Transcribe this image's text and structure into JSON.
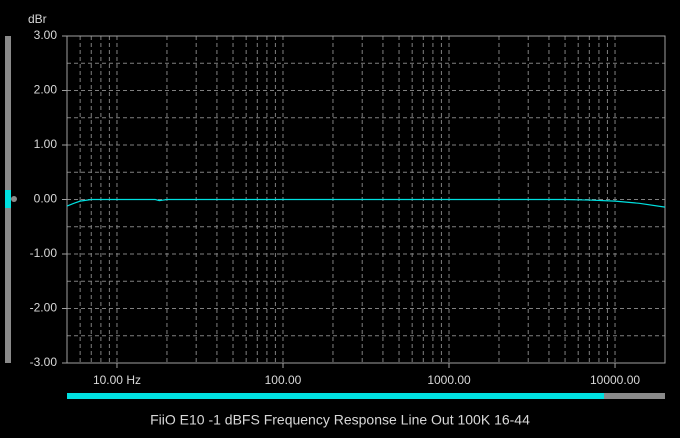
{
  "chart_data": {
    "type": "line",
    "title": "FiiO E10 -1 dBFS Frequency Response Line Out 100K 16-44",
    "y_label": "dBr",
    "x_log": true,
    "xlim": [
      5,
      20000
    ],
    "ylim": [
      -3,
      3
    ],
    "xticks": [
      {
        "value": 10,
        "label": "10.00 Hz"
      },
      {
        "value": 100,
        "label": "100.00"
      },
      {
        "value": 1000,
        "label": "1000.00"
      },
      {
        "value": 10000,
        "label": "10000.00"
      }
    ],
    "yticks": [
      {
        "value": 3,
        "label": "3.00"
      },
      {
        "value": 2,
        "label": "2.00"
      },
      {
        "value": 1,
        "label": "1.00"
      },
      {
        "value": 0,
        "label": "0.00"
      },
      {
        "value": -1,
        "label": "-1.00"
      },
      {
        "value": -2,
        "label": "-2.00"
      },
      {
        "value": -3,
        "label": "-3.00"
      }
    ],
    "x_minor_grid": [
      6,
      7,
      8,
      9,
      20,
      30,
      40,
      50,
      60,
      70,
      80,
      90,
      200,
      300,
      400,
      500,
      600,
      700,
      800,
      900,
      2000,
      3000,
      4000,
      5000,
      6000,
      7000,
      8000,
      9000
    ],
    "y_minor_grid": [
      2.5,
      1.5,
      0.5,
      -0.5,
      -1.5,
      -2.5
    ],
    "grid": true,
    "series": [
      {
        "name": "FiiO E10",
        "color": "#00e0e0",
        "x": [
          5,
          5.5,
          6,
          7,
          10,
          17,
          18,
          19,
          20,
          100,
          1000,
          5000,
          7000,
          10000,
          14000,
          20000
        ],
        "values": [
          -0.12,
          -0.07,
          -0.03,
          0,
          0,
          0,
          -0.02,
          -0.01,
          0,
          0,
          0,
          0,
          -0.01,
          -0.03,
          -0.07,
          -0.14
        ]
      }
    ]
  }
}
